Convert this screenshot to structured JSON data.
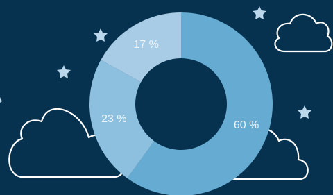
{
  "chart_data": {
    "type": "donut",
    "categories": [
      null,
      null,
      null
    ],
    "values": [
      60,
      23,
      17
    ],
    "value_labels": [
      "60 %",
      "23 %",
      "17 %"
    ],
    "colors": [
      "#66abd1",
      "#8dbfde",
      "#a8cce5"
    ]
  }
}
